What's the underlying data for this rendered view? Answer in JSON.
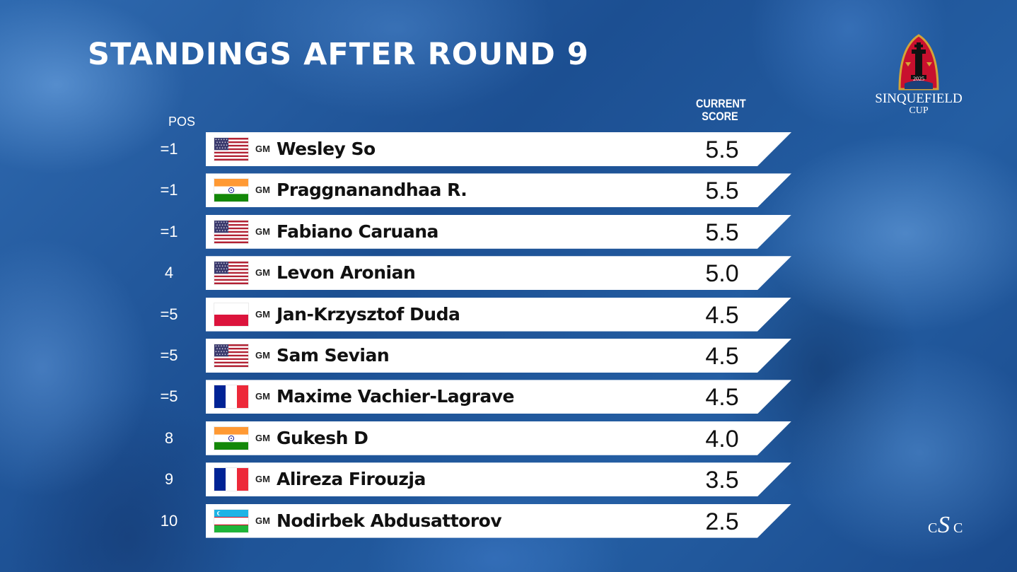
{
  "title": "STANDINGS AFTER ROUND 9",
  "columns": {
    "pos": "POS",
    "score_line1": "CURRENT",
    "score_line2": "SCORE"
  },
  "logos": {
    "cup_year": "2025",
    "cup_line1": "SINQUEFIELD",
    "cup_line2": "CUP",
    "club_letters": [
      "C",
      "S",
      "C"
    ]
  },
  "standings": [
    {
      "pos": "=1",
      "flag": "usa-flag",
      "title": "GM",
      "name": "Wesley So",
      "score": "5.5"
    },
    {
      "pos": "=1",
      "flag": "india-flag",
      "title": "GM",
      "name": "Praggnanandhaa R.",
      "score": "5.5"
    },
    {
      "pos": "=1",
      "flag": "usa-flag",
      "title": "GM",
      "name": "Fabiano Caruana",
      "score": "5.5"
    },
    {
      "pos": "4",
      "flag": "usa-flag",
      "title": "GM",
      "name": "Levon Aronian",
      "score": "5.0"
    },
    {
      "pos": "=5",
      "flag": "poland-flag",
      "title": "GM",
      "name": "Jan-Krzysztof Duda",
      "score": "4.5"
    },
    {
      "pos": "=5",
      "flag": "usa-flag",
      "title": "GM",
      "name": "Sam Sevian",
      "score": "4.5"
    },
    {
      "pos": "=5",
      "flag": "france-flag",
      "title": "GM",
      "name": "Maxime Vachier-Lagrave",
      "score": "4.5"
    },
    {
      "pos": "8",
      "flag": "india-flag",
      "title": "GM",
      "name": "Gukesh D",
      "score": "4.0"
    },
    {
      "pos": "9",
      "flag": "france-flag",
      "title": "GM",
      "name": "Alireza Firouzja",
      "score": "3.5"
    },
    {
      "pos": "10",
      "flag": "uzbekistan-flag",
      "title": "GM",
      "name": "Nodirbek Abdusattorov",
      "score": "2.5"
    }
  ],
  "colors": {
    "background": "#1f5597",
    "row_background": "#ffffff",
    "header_text": "#ffffff",
    "row_text": "#111111",
    "cup_red": "#c8102e",
    "cup_gold": "#d4a437"
  }
}
